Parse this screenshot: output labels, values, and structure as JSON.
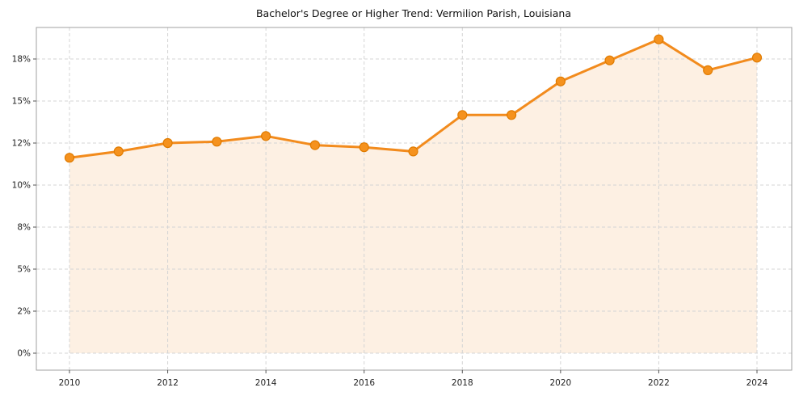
{
  "page": {
    "background": "#ffffff"
  },
  "chart_data": {
    "type": "line",
    "title": "Bachelor's Degree or Higher Trend: Vermilion Parish, Louisiana",
    "units": "%",
    "x": [
      2010,
      2011,
      2012,
      2013,
      2014,
      2015,
      2016,
      2017,
      2018,
      2019,
      2020,
      2021,
      2022,
      2023,
      2024
    ],
    "series": [
      {
        "name": "Bachelor's Degree or Higher",
        "values": [
          11.3,
          11.6,
          12.0,
          12.1,
          12.5,
          11.9,
          11.8,
          11.6,
          14.0,
          14.0,
          16.4,
          17.9,
          19.4,
          17.2,
          18.1
        ]
      }
    ],
    "x_tick_labels": [
      "2010",
      "2012",
      "2014",
      "2016",
      "2018",
      "2020",
      "2022",
      "2024"
    ],
    "y_tick_labels": [
      "0%",
      "2%",
      "5%",
      "8%",
      "10%",
      "12%",
      "15%",
      "18%"
    ],
    "y_tick_values": [
      0,
      2,
      5,
      8,
      10,
      12,
      15,
      18
    ],
    "grid": true,
    "legend": "none",
    "marker": "circle",
    "area_filled": true,
    "colors": {
      "line": "#f28b1d",
      "marker_fill": "#f5921e",
      "marker_edge": "#e07b00",
      "area_fill": "rgba(242,132,24,0.12)",
      "grid": "#d4d4d4",
      "axis_border": "#a0a0a0",
      "tick_text": "#222222",
      "title_text": "#111111"
    }
  }
}
